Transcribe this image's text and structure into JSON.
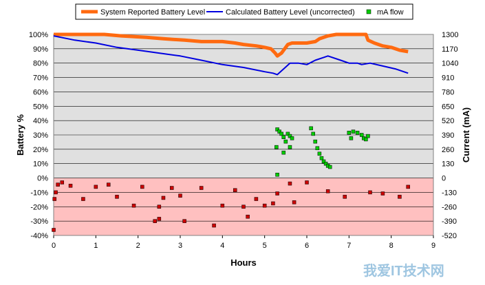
{
  "chart_data": {
    "type": "line",
    "xlabel": "Hours",
    "ylabel": "Battery %",
    "y2label": "Current (mA)",
    "xlim": [
      0,
      9
    ],
    "ylim": [
      -40,
      100
    ],
    "y2lim": [
      -520,
      1300
    ],
    "x_ticks": [
      "0",
      "1",
      "2",
      "3",
      "4",
      "5",
      "6",
      "7",
      "8",
      "9"
    ],
    "y_ticks": [
      "-40%",
      "-30%",
      "-20%",
      "-10%",
      "0%",
      "10%",
      "20%",
      "30%",
      "40%",
      "50%",
      "60%",
      "70%",
      "80%",
      "90%",
      "100%"
    ],
    "y2_ticks": [
      "-520",
      "-390",
      "-260",
      "-130",
      "0",
      "130",
      "260",
      "390",
      "520",
      "650",
      "780",
      "910",
      "1040",
      "1170",
      "1300"
    ],
    "grid": true,
    "legend_position": "top-center",
    "background_colors": {
      "positive_region": "#e0e0e0",
      "negative_region": "#ffc0c0"
    },
    "watermark": "我爱IT技术网",
    "series": [
      {
        "name": "System Reported Battery Level",
        "kind": "line",
        "axis": "left",
        "color": "#ff6a10",
        "points": [
          [
            0,
            100
          ],
          [
            1.2,
            100
          ],
          [
            1.6,
            99
          ],
          [
            2.2,
            98
          ],
          [
            2.6,
            97
          ],
          [
            3.1,
            96
          ],
          [
            3.5,
            95
          ],
          [
            4.0,
            95
          ],
          [
            4.3,
            94
          ],
          [
            4.5,
            93
          ],
          [
            4.8,
            92
          ],
          [
            5.0,
            91
          ],
          [
            5.15,
            90
          ],
          [
            5.25,
            87
          ],
          [
            5.3,
            85
          ],
          [
            5.4,
            87
          ],
          [
            5.55,
            93
          ],
          [
            5.65,
            94
          ],
          [
            6.0,
            94
          ],
          [
            6.2,
            95
          ],
          [
            6.3,
            97
          ],
          [
            6.5,
            99
          ],
          [
            6.7,
            100
          ],
          [
            7.0,
            100
          ],
          [
            7.4,
            100
          ],
          [
            7.45,
            96
          ],
          [
            7.6,
            94
          ],
          [
            7.8,
            92
          ],
          [
            8.0,
            91
          ],
          [
            8.2,
            89
          ],
          [
            8.4,
            88
          ]
        ]
      },
      {
        "name": "Calculated Battery Level (uncorrected)",
        "kind": "line",
        "axis": "left",
        "color": "#0000e0",
        "points": [
          [
            0,
            99
          ],
          [
            0.5,
            96
          ],
          [
            1.0,
            94
          ],
          [
            1.5,
            91
          ],
          [
            2.0,
            89
          ],
          [
            2.5,
            87
          ],
          [
            3.0,
            85
          ],
          [
            3.5,
            82
          ],
          [
            4.0,
            79
          ],
          [
            4.5,
            77
          ],
          [
            5.0,
            74
          ],
          [
            5.2,
            73
          ],
          [
            5.3,
            72
          ],
          [
            5.45,
            76
          ],
          [
            5.6,
            80
          ],
          [
            5.8,
            80
          ],
          [
            6.0,
            79
          ],
          [
            6.2,
            82
          ],
          [
            6.4,
            84
          ],
          [
            6.5,
            85
          ],
          [
            6.8,
            82
          ],
          [
            7.0,
            80
          ],
          [
            7.2,
            80
          ],
          [
            7.3,
            79
          ],
          [
            7.5,
            80
          ],
          [
            7.8,
            78
          ],
          [
            8.1,
            76
          ],
          [
            8.4,
            73
          ]
        ]
      },
      {
        "name": "mA flow",
        "kind": "scatter",
        "axis": "right",
        "color": "#ff0000",
        "negative_color": "#cc0000",
        "positive_color": "#00cc00",
        "points": [
          [
            0.0,
            -470
          ],
          [
            0.02,
            -190
          ],
          [
            0.05,
            -130
          ],
          [
            0.1,
            -60
          ],
          [
            0.2,
            -40
          ],
          [
            0.4,
            -70
          ],
          [
            0.7,
            -190
          ],
          [
            1.0,
            -80
          ],
          [
            1.3,
            -60
          ],
          [
            1.5,
            -170
          ],
          [
            1.9,
            -250
          ],
          [
            2.1,
            -80
          ],
          [
            2.4,
            -390
          ],
          [
            2.5,
            -260
          ],
          [
            2.5,
            -370
          ],
          [
            2.6,
            -180
          ],
          [
            2.8,
            -90
          ],
          [
            3.0,
            -160
          ],
          [
            3.1,
            -390
          ],
          [
            3.5,
            -90
          ],
          [
            3.8,
            -430
          ],
          [
            4.0,
            -250
          ],
          [
            4.3,
            -110
          ],
          [
            4.5,
            -260
          ],
          [
            4.6,
            -350
          ],
          [
            4.8,
            -190
          ],
          [
            5.0,
            -250
          ],
          [
            5.2,
            -230
          ],
          [
            5.3,
            -140
          ],
          [
            5.6,
            -50
          ],
          [
            5.7,
            -220
          ],
          [
            6.0,
            -40
          ],
          [
            6.5,
            -120
          ],
          [
            6.9,
            -170
          ],
          [
            7.5,
            -130
          ],
          [
            7.8,
            -140
          ],
          [
            8.2,
            -170
          ],
          [
            8.4,
            -80
          ],
          [
            5.3,
            30
          ],
          [
            5.28,
            280
          ],
          [
            5.3,
            440
          ],
          [
            5.35,
            420
          ],
          [
            5.4,
            400
          ],
          [
            5.45,
            370
          ],
          [
            5.5,
            330
          ],
          [
            5.55,
            400
          ],
          [
            5.6,
            380
          ],
          [
            5.65,
            360
          ],
          [
            5.6,
            280
          ],
          [
            5.45,
            230
          ],
          [
            6.1,
            450
          ],
          [
            6.15,
            400
          ],
          [
            6.2,
            330
          ],
          [
            6.25,
            270
          ],
          [
            6.3,
            220
          ],
          [
            6.35,
            180
          ],
          [
            6.4,
            150
          ],
          [
            6.45,
            130
          ],
          [
            6.5,
            110
          ],
          [
            6.55,
            100
          ],
          [
            7.0,
            410
          ],
          [
            7.05,
            360
          ],
          [
            7.1,
            420
          ],
          [
            7.2,
            410
          ],
          [
            7.3,
            390
          ],
          [
            7.35,
            360
          ],
          [
            7.4,
            350
          ],
          [
            7.45,
            380
          ]
        ]
      }
    ]
  }
}
